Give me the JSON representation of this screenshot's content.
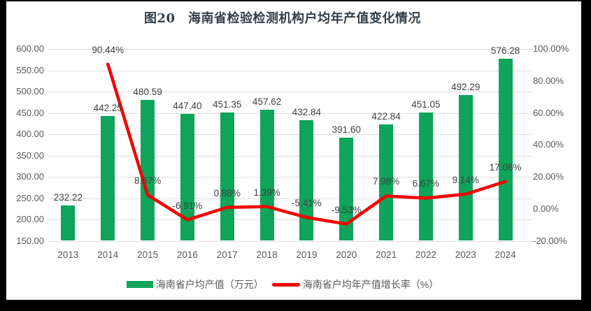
{
  "frame_color": "#000000",
  "chart_data": {
    "type": "combo-bar-line",
    "title": "图20　海南省检验检测机构户均年产值变化情况",
    "categories": [
      "2013",
      "2014",
      "2015",
      "2016",
      "2017",
      "2018",
      "2019",
      "2020",
      "2021",
      "2022",
      "2023",
      "2024"
    ],
    "series": [
      {
        "name": "海南省户均产值（万元）",
        "type": "bar",
        "axis": "left",
        "color": "#0ea45a",
        "values": [
          232.22,
          442.25,
          480.59,
          447.4,
          451.35,
          457.62,
          432.84,
          391.6,
          422.84,
          451.05,
          492.29,
          576.28
        ],
        "labels": [
          "232.22",
          "442.25",
          "480.59",
          "447.40",
          "451.35",
          "457.62",
          "432.84",
          "391.60",
          "422.84",
          "451.05",
          "492.29",
          "576.28"
        ]
      },
      {
        "name": "海南省户均年产值增长率（%）",
        "type": "line",
        "axis": "right",
        "color": "#f40000",
        "values": [
          null,
          90.44,
          8.67,
          -6.91,
          0.88,
          1.39,
          -5.41,
          -9.53,
          7.98,
          6.67,
          9.14,
          17.06
        ],
        "labels": [
          "",
          "90.44%",
          "8.67%",
          "-6.91%",
          "0.88%",
          "1.39%",
          "-5.41%",
          "-9.53%",
          "7.98%",
          "6.67%",
          "9.14%",
          "17.06%"
        ]
      }
    ],
    "left_axis": {
      "min": 150,
      "max": 600,
      "ticks": [
        "600.00",
        "550.00",
        "500.00",
        "450.00",
        "400.00",
        "350.00",
        "300.00",
        "250.00",
        "200.00",
        "150.00"
      ]
    },
    "right_axis": {
      "min": -20,
      "max": 100,
      "ticks": [
        "100.00%",
        "80.00%",
        "60.00%",
        "40.00%",
        "20.00%",
        "0.00%",
        "-20.00%"
      ]
    },
    "grid": true,
    "legend_position": "bottom",
    "text_color": "#595959",
    "label_color": "#404040",
    "gridline_color": "#dedede"
  }
}
